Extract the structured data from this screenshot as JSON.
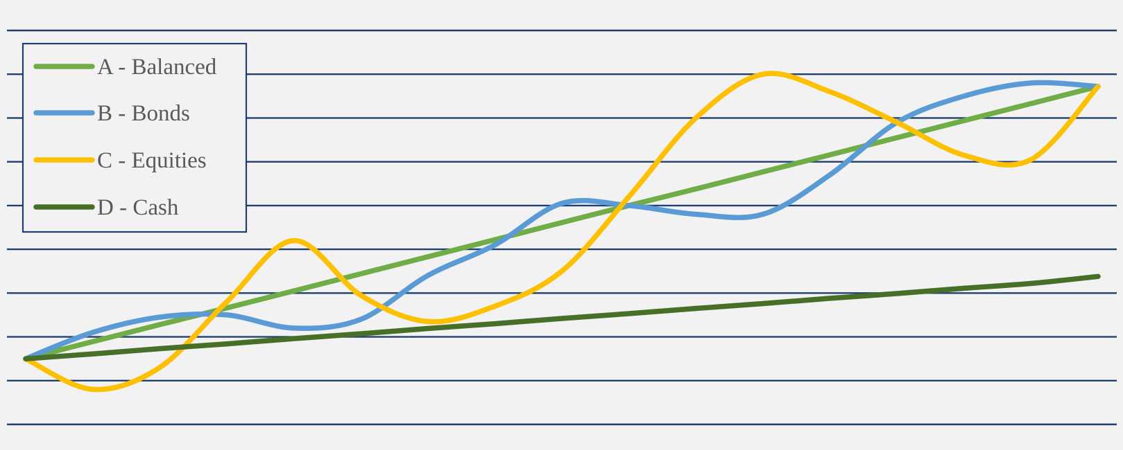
{
  "chart_data": {
    "type": "line",
    "title": "",
    "xlabel": "",
    "ylabel": "",
    "x": [
      0,
      1,
      2,
      3,
      4,
      5,
      6,
      7,
      8,
      9,
      10,
      11,
      12,
      13,
      14,
      15,
      16
    ],
    "xlim": [
      0,
      16
    ],
    "ylim": [
      0,
      9
    ],
    "gridlines_y": [
      0,
      1,
      2,
      3,
      4,
      5,
      6,
      7,
      8,
      9
    ],
    "grid": "horizontal",
    "legend_position": "top-left",
    "series": [
      {
        "name": "A - Balanced",
        "color": "#70ad47",
        "values": [
          1.5,
          1.89,
          2.28,
          2.66,
          3.05,
          3.44,
          3.83,
          4.22,
          4.61,
          5.0,
          5.38,
          5.77,
          6.16,
          6.55,
          6.94,
          7.33,
          7.72
        ]
      },
      {
        "name": "B - Bonds",
        "color": "#5b9bd5",
        "values": [
          1.5,
          2.1,
          2.45,
          2.5,
          2.2,
          2.4,
          3.4,
          4.1,
          5.05,
          5.0,
          4.8,
          4.8,
          5.7,
          6.9,
          7.5,
          7.8,
          7.72
        ]
      },
      {
        "name": "C - Equities",
        "color": "#ffc000",
        "values": [
          1.5,
          0.8,
          1.3,
          2.8,
          4.2,
          2.95,
          2.35,
          2.7,
          3.5,
          5.2,
          7.0,
          8.0,
          7.6,
          6.9,
          6.15,
          6.05,
          7.72
        ]
      },
      {
        "name": "D - Cash",
        "color": "#476f27",
        "values": [
          1.5,
          1.61,
          1.73,
          1.84,
          1.96,
          2.07,
          2.19,
          2.3,
          2.42,
          2.53,
          2.65,
          2.76,
          2.88,
          2.99,
          3.11,
          3.22,
          3.38
        ]
      }
    ]
  }
}
